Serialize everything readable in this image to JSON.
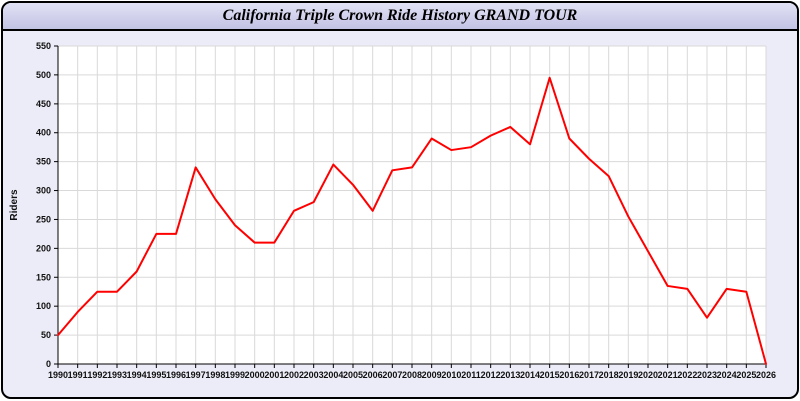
{
  "header": {
    "title": "California Triple Crown Ride History GRAND TOUR"
  },
  "chart_data": {
    "type": "line",
    "title": "California Triple Crown Ride History GRAND TOUR",
    "xlabel": "",
    "ylabel": "Riders",
    "ylim": [
      0,
      550
    ],
    "ytick_step": 50,
    "grid": true,
    "legend": "none",
    "line_color": "#ff0000",
    "categories": [
      "1990",
      "1991",
      "1992",
      "1993",
      "1994",
      "1995",
      "1996",
      "1997",
      "1998",
      "1999",
      "2000",
      "2001",
      "2002",
      "2003",
      "2004",
      "2005",
      "2006",
      "2007",
      "2008",
      "2009",
      "2010",
      "2011",
      "2012",
      "2013",
      "2014",
      "2015",
      "2016",
      "2017",
      "2018",
      "2019",
      "2020",
      "2021",
      "2022",
      "2023",
      "2024",
      "2025",
      "2026"
    ],
    "values": [
      50,
      90,
      125,
      125,
      160,
      225,
      225,
      340,
      285,
      240,
      210,
      210,
      265,
      280,
      345,
      310,
      265,
      335,
      340,
      390,
      370,
      375,
      395,
      410,
      380,
      495,
      390,
      355,
      325,
      255,
      195,
      135,
      130,
      80,
      130,
      125,
      0
    ]
  },
  "colors": {
    "window_background": "#ececf8",
    "titlebar_gradient_top": "#e2e2f5",
    "titlebar_gradient_bottom": "#c2c2e4",
    "plot_background": "#ffffff",
    "gridline": "#d9d9d9",
    "axis": "#000000",
    "series_line": "#ff0000"
  }
}
